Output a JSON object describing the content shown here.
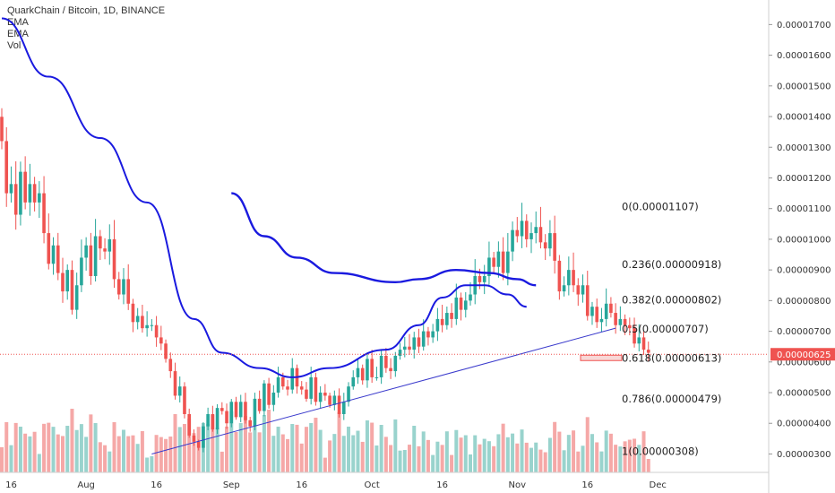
{
  "header": {
    "title": "QuarkChain / Bitcoin, 1D, BINANCE",
    "indicators": [
      "EMA",
      "EMA",
      "Vol"
    ]
  },
  "colors": {
    "up": "#26a69a",
    "down": "#ef5350",
    "up_vol": "#99d3cd",
    "down_vol": "#f5a8a7",
    "ema": "#1a1adf",
    "trendline": "#3a3acc",
    "last_price": "#ef5350"
  },
  "chart_data": {
    "type": "candlestick",
    "yaxis": {
      "min": 2.4e-06,
      "max": 1.78e-05,
      "ticks": [
        "0.00000300",
        "0.00000400",
        "0.00000500",
        "0.00000600",
        "0.00000700",
        "0.00000800",
        "0.00000900",
        "0.00001000",
        "0.00001100",
        "0.00001200",
        "0.00001300",
        "0.00001400",
        "0.00001500",
        "0.00001600",
        "0.00001700"
      ]
    },
    "xaxis": {
      "start": "2018-07-14",
      "end": "2018-12-07",
      "ticks": [
        {
          "label": "16",
          "date": "2018-07-16"
        },
        {
          "label": "Aug",
          "date": "2018-08-01"
        },
        {
          "label": "16",
          "date": "2018-08-16"
        },
        {
          "label": "Sep",
          "date": "2018-09-01"
        },
        {
          "label": "16",
          "date": "2018-09-16"
        },
        {
          "label": "Oct",
          "date": "2018-10-01"
        },
        {
          "label": "16",
          "date": "2018-10-16"
        },
        {
          "label": "Nov",
          "date": "2018-11-01"
        },
        {
          "label": "16",
          "date": "2018-11-16"
        },
        {
          "label": "Dec",
          "date": "2018-12-01"
        }
      ]
    },
    "series": {
      "start_date": "2018-07-14",
      "close": [
        1.32e-05,
        1.15e-05,
        1.18e-05,
        1.08e-05,
        1.22e-05,
        1.12e-05,
        1.18e-05,
        1.12e-05,
        1.15e-05,
        1.02e-05,
        9.2e-06,
        9.8e-06,
        8.9e-06,
        8.3e-06,
        9e-06,
        7.7e-06,
        8.5e-06,
        9.4e-06,
        9.8e-06,
        8.8e-06,
        1.01e-05,
        9.7e-06,
        9.6e-06,
        1e-05,
        8.7e-06,
        8.2e-06,
        8.7e-06,
        7.9e-06,
        7.3e-06,
        7.5e-06,
        7.1e-06,
        7.2e-06,
        7.2e-06,
        6.8e-06,
        6.6e-06,
        6.1e-06,
        5.7e-06,
        4.9e-06,
        5.2e-06,
        4.3e-06,
        3.6e-06,
        3.4e-06,
        3.2e-06,
        3.9e-06,
        4.3e-06,
        3.8e-06,
        4.5e-06,
        4.4e-06,
        4e-06,
        4.7e-06,
        4.2e-06,
        4.7e-06,
        4.1e-06,
        3.9e-06,
        4.8e-06,
        4.4e-06,
        5.3e-06,
        4.6e-06,
        5e-06,
        5.5e-06,
        5.2e-06,
        5.1e-06,
        5.8e-06,
        5.2e-06,
        5.1e-06,
        4.8e-06,
        5.5e-06,
        4.7e-06,
        5e-06,
        4.9e-06,
        4.6e-06,
        4.9e-06,
        4.3e-06,
        4.7e-06,
        5.2e-06,
        5.5e-06,
        5.8e-06,
        5.4e-06,
        6.1e-06,
        5.5e-06,
        5.5e-06,
        6.2e-06,
        5.8e-06,
        5.7e-06,
        6.2e-06,
        6.4e-06,
        6.5e-06,
        6.4e-06,
        6.8e-06,
        6.5e-06,
        7e-06,
        6.8e-06,
        7e-06,
        7.4e-06,
        7.2e-06,
        7.6e-06,
        7.4e-06,
        8.1e-06,
        7.7e-06,
        8e-06,
        8.2e-06,
        8.8e-06,
        8.6e-06,
        8.8e-06,
        9.4e-06,
        9.1e-06,
        9.6e-06,
        8.9e-06,
        9.6e-06,
        1.03e-05,
        1.01e-05,
        1.06e-05,
        1e-05,
        1.02e-05,
        1.04e-05,
        9.9e-06,
        9.7e-06,
        1.02e-05,
        9.3e-06,
        8.3e-06,
        8.5e-06,
        9e-06,
        8.5e-06,
        8.2e-06,
        8.5e-06,
        7.5e-06,
        7.8e-06,
        7.3e-06,
        7.4e-06,
        7.9e-06,
        7.6e-06,
        7.2e-06,
        7.4e-06,
        7.2e-06,
        7.1e-06,
        6.6e-06,
        6.8e-06,
        6.4e-06,
        6.3e-06
      ]
    },
    "ema_short": [
      {
        "date": "2018-07-14",
        "value": 1.72e-05
      },
      {
        "date": "2018-07-24",
        "value": 1.53e-05
      },
      {
        "date": "2018-08-04",
        "value": 1.33e-05
      },
      {
        "date": "2018-08-14",
        "value": 1.12e-05
      },
      {
        "date": "2018-08-24",
        "value": 7.4e-06
      },
      {
        "date": "2018-08-30",
        "value": 6.3e-06
      },
      {
        "date": "2018-09-07",
        "value": 5.8e-06
      },
      {
        "date": "2018-09-14",
        "value": 5.5e-06
      },
      {
        "date": "2018-09-22",
        "value": 5.8e-06
      },
      {
        "date": "2018-10-04",
        "value": 6.4e-06
      },
      {
        "date": "2018-10-11",
        "value": 7.2e-06
      },
      {
        "date": "2018-10-16",
        "value": 8.1e-06
      },
      {
        "date": "2018-10-21",
        "value": 8.5e-06
      },
      {
        "date": "2018-10-25",
        "value": 8.5e-06
      },
      {
        "date": "2018-10-30",
        "value": 8.2e-06
      },
      {
        "date": "2018-11-03",
        "value": 7.8e-06
      }
    ],
    "ema_long": [
      {
        "date": "2018-09-01",
        "value": 1.15e-05
      },
      {
        "date": "2018-09-08",
        "value": 1.01e-05
      },
      {
        "date": "2018-09-15",
        "value": 9.4e-06
      },
      {
        "date": "2018-09-23",
        "value": 8.9e-06
      },
      {
        "date": "2018-10-06",
        "value": 8.6e-06
      },
      {
        "date": "2018-10-11",
        "value": 8.7e-06
      },
      {
        "date": "2018-10-19",
        "value": 9e-06
      },
      {
        "date": "2018-10-26",
        "value": 8.9e-06
      },
      {
        "date": "2018-11-01",
        "value": 8.7e-06
      },
      {
        "date": "2018-11-05",
        "value": 8.5e-06
      }
    ],
    "trendline": [
      {
        "date": "2018-08-15",
        "value": 3e-06
      },
      {
        "date": "2018-11-22",
        "value": 7.1e-06
      }
    ],
    "fibonacci": [
      {
        "label": "0(0.00001107)",
        "price": 1.107e-05
      },
      {
        "label": "0.236(0.00000918)",
        "price": 9.18e-06
      },
      {
        "label": "0.382(0.00000802)",
        "price": 8.02e-06
      },
      {
        "label": "0.5(0.00000707)",
        "price": 7.07e-06
      },
      {
        "label": "0.618(0.00000613)",
        "price": 6.13e-06
      },
      {
        "label": "0.786(0.00000479)",
        "price": 4.79e-06
      },
      {
        "label": "1(0.00000308)",
        "price": 3.08e-06
      }
    ],
    "last_price": {
      "label": "0.00000625",
      "value": 6.25e-06
    }
  }
}
